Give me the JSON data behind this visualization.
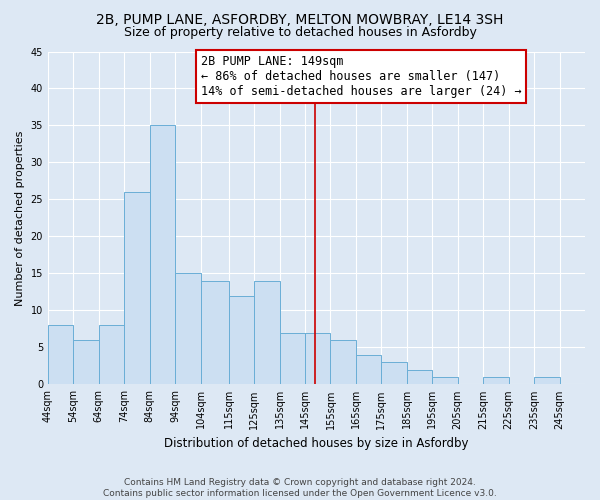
{
  "title": "2B, PUMP LANE, ASFORDBY, MELTON MOWBRAY, LE14 3SH",
  "subtitle": "Size of property relative to detached houses in Asfordby",
  "xlabel": "Distribution of detached houses by size in Asfordby",
  "ylabel": "Number of detached properties",
  "bin_labels": [
    "44sqm",
    "54sqm",
    "64sqm",
    "74sqm",
    "84sqm",
    "94sqm",
    "104sqm",
    "115sqm",
    "125sqm",
    "135sqm",
    "145sqm",
    "155sqm",
    "165sqm",
    "175sqm",
    "185sqm",
    "195sqm",
    "205sqm",
    "215sqm",
    "225sqm",
    "235sqm",
    "245sqm"
  ],
  "bar_lefts": [
    44,
    54,
    64,
    74,
    84,
    94,
    104,
    115,
    125,
    135,
    145,
    155,
    165,
    175,
    185,
    195,
    205,
    215,
    225,
    235
  ],
  "bar_widths": [
    10,
    10,
    10,
    10,
    10,
    10,
    11,
    10,
    10,
    10,
    10,
    10,
    10,
    10,
    10,
    10,
    10,
    10,
    10,
    10
  ],
  "values": [
    8,
    6,
    8,
    26,
    35,
    15,
    14,
    12,
    14,
    7,
    7,
    6,
    4,
    3,
    2,
    1,
    0,
    1,
    0,
    1
  ],
  "bar_color": "#ccdff2",
  "bar_edge_color": "#6aaed6",
  "ref_line_x": 149,
  "ref_line_color": "#cc0000",
  "annotation_line1": "2B PUMP LANE: 149sqm",
  "annotation_line2": "← 86% of detached houses are smaller (147)",
  "annotation_line3": "14% of semi-detached houses are larger (24) →",
  "annotation_box_facecolor": "#ffffff",
  "annotation_box_edgecolor": "#cc0000",
  "ylim": [
    0,
    45
  ],
  "yticks": [
    0,
    5,
    10,
    15,
    20,
    25,
    30,
    35,
    40,
    45
  ],
  "xlim_left": 44,
  "xlim_right": 255,
  "background_color": "#dde8f4",
  "grid_color": "#ffffff",
  "footer_line1": "Contains HM Land Registry data © Crown copyright and database right 2024.",
  "footer_line2": "Contains public sector information licensed under the Open Government Licence v3.0.",
  "title_fontsize": 10,
  "subtitle_fontsize": 9,
  "xlabel_fontsize": 8.5,
  "ylabel_fontsize": 8,
  "tick_fontsize": 7,
  "annotation_fontsize": 8.5,
  "footer_fontsize": 6.5
}
